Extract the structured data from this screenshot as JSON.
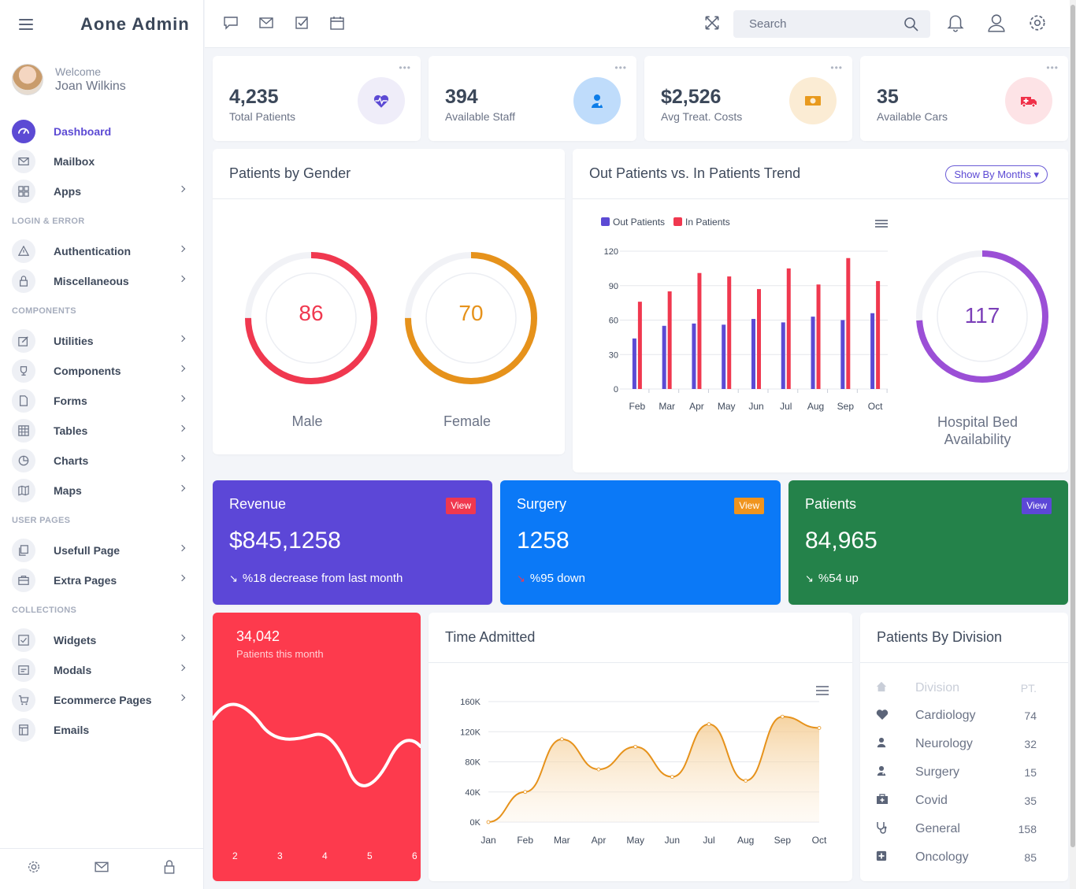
{
  "brand": "Aone Admin",
  "profile": {
    "welcome": "Welcome",
    "name": "Joan Wilkins"
  },
  "sidebar": {
    "items": [
      {
        "label": "Dashboard"
      },
      {
        "label": "Mailbox"
      },
      {
        "label": "Apps"
      },
      {
        "label": "Authentication"
      },
      {
        "label": "Miscellaneous"
      },
      {
        "label": "Utilities"
      },
      {
        "label": "Components"
      },
      {
        "label": "Forms"
      },
      {
        "label": "Tables"
      },
      {
        "label": "Charts"
      },
      {
        "label": "Maps"
      },
      {
        "label": "Usefull Page"
      },
      {
        "label": "Extra Pages"
      },
      {
        "label": "Widgets"
      },
      {
        "label": "Modals"
      },
      {
        "label": "Ecommerce Pages"
      },
      {
        "label": "Emails"
      }
    ],
    "sections": [
      "LOGIN & ERROR",
      "COMPONENTS",
      "USER PAGES",
      "COLLECTIONS"
    ]
  },
  "search": {
    "placeholder": "Search"
  },
  "stats": [
    {
      "value": "4,235",
      "label": "Total Patients",
      "color": "#5c4ad4"
    },
    {
      "value": "394",
      "label": "Available Staff",
      "color": "#0d7de8"
    },
    {
      "value": "$2,526",
      "label": "Avg Treat. Costs",
      "color": "#e89a1e"
    },
    {
      "value": "35",
      "label": "Available Cars",
      "color": "#f0324a"
    }
  ],
  "gender": {
    "title": "Patients by Gender",
    "male": {
      "value": "86",
      "label": "Male",
      "color": "#f0384f"
    },
    "female": {
      "value": "70",
      "label": "Female",
      "color": "#e6921b"
    }
  },
  "trend": {
    "title": "Out Patients vs. In Patients Trend",
    "button": "Show By Months",
    "bed_value": "117",
    "bed_label_1": "Hospital Bed",
    "bed_label_2": "Availability",
    "bed_color": "#9b4fd6"
  },
  "summary": [
    {
      "title": "Revenue",
      "value": "$845,1258",
      "sub": "%18 decrease from last month",
      "view": "View",
      "bg": "#5c47d7",
      "view_bg": "#f0384f"
    },
    {
      "title": "Surgery",
      "value": "1258",
      "sub": "%95 down",
      "view": "View",
      "bg": "#0b79f7",
      "view_bg": "#f0941e"
    },
    {
      "title": "Patients",
      "value": "84,965",
      "sub": "%54 up",
      "view": "View",
      "bg": "#24824a",
      "view_bg": "#5c47d7"
    }
  ],
  "month_card": {
    "value": "34,042",
    "label": "Patients this month",
    "ticks": [
      "2",
      "3",
      "4",
      "5",
      "6"
    ]
  },
  "time_admitted": {
    "title": "Time Admitted"
  },
  "division": {
    "title": "Patients By Division",
    "header": {
      "name": "Division",
      "value": "PT."
    },
    "rows": [
      {
        "icon": "heart-icon",
        "name": "Cardiology",
        "value": "74"
      },
      {
        "icon": "user-icon",
        "name": "Neurology",
        "value": "32"
      },
      {
        "icon": "doctor-icon",
        "name": "Surgery",
        "value": "15"
      },
      {
        "icon": "medkit-icon",
        "name": "Covid",
        "value": "35"
      },
      {
        "icon": "stethoscope-icon",
        "name": "General",
        "value": "158"
      },
      {
        "icon": "plus-square-icon",
        "name": "Oncology",
        "value": "85"
      }
    ]
  },
  "chart_data": [
    {
      "type": "bar",
      "categories": [
        "Feb",
        "Mar",
        "Apr",
        "May",
        "Jun",
        "Jul",
        "Aug",
        "Sep",
        "Oct"
      ],
      "series": [
        {
          "name": "Out Patients",
          "values": [
            44,
            55,
            57,
            56,
            61,
            58,
            63,
            60,
            66
          ],
          "color": "#5c4ad4"
        },
        {
          "name": "In Patients",
          "values": [
            76,
            85,
            101,
            98,
            87,
            105,
            91,
            114,
            94
          ],
          "color": "#f0384f"
        }
      ],
      "yticks": [
        "0",
        "30",
        "60",
        "90",
        "120"
      ],
      "ylim": [
        0,
        120
      ]
    },
    {
      "type": "area",
      "categories": [
        "Jan",
        "Feb",
        "Mar",
        "Apr",
        "May",
        "Jun",
        "Jul",
        "Aug",
        "Sep",
        "Oct"
      ],
      "values": [
        0,
        40000,
        110000,
        70000,
        100000,
        60000,
        130000,
        55000,
        140000,
        125000
      ],
      "yticks": [
        "0K",
        "40K",
        "80K",
        "120K",
        "160K"
      ],
      "ylim": [
        0,
        160000
      ],
      "color": "#e6921b"
    }
  ]
}
